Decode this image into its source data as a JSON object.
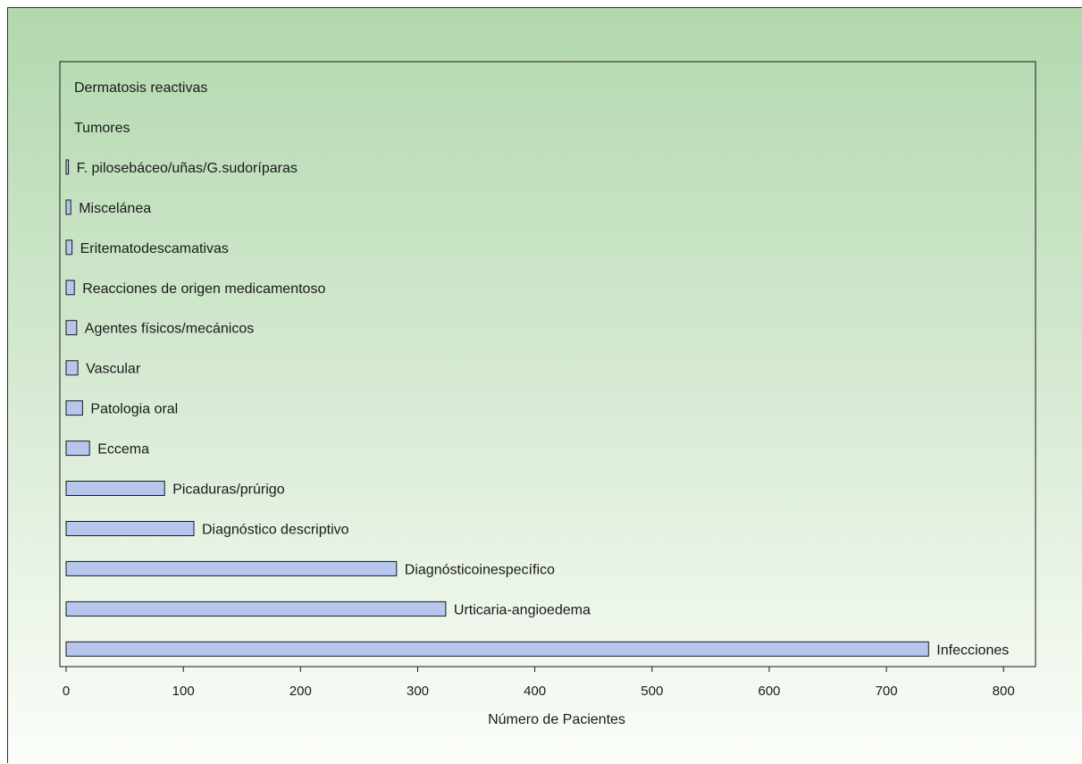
{
  "chart_data": {
    "type": "bar",
    "orientation": "horizontal",
    "categories": [
      "Dermatosis reactivas",
      "Tumores",
      "F. pilosebáceo/uñas/G.sudoríparas",
      "Miscelánea",
      "Eritematodescamativas",
      "Reacciones de origen medicamentoso",
      "Agentes físicos/mecánicos",
      "Vascular",
      "Patologia oral",
      "Eccema",
      "Picaduras/prúrigo",
      "Diagnóstico descriptivo",
      "Diagnósticoinespecífico",
      "Urticaria-angioedema",
      "Infecciones"
    ],
    "values": [
      0,
      0,
      2,
      4,
      5,
      7,
      9,
      10,
      14,
      20,
      84,
      109,
      282,
      324,
      736
    ],
    "xlabel": "Número de Pacientes",
    "ylabel": "",
    "xlim": [
      0,
      800
    ],
    "xticks": [
      "0",
      "100",
      "200",
      "300",
      "400",
      "500",
      "600",
      "700",
      "800"
    ],
    "grid": false,
    "colors": {
      "bar_fill": "#b6c6ec",
      "bar_stroke": "#1a1a1a"
    }
  }
}
